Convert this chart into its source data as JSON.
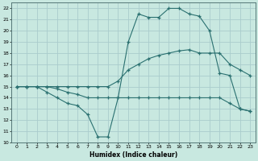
{
  "title": "",
  "xlabel": "Humidex (Indice chaleur)",
  "xlim": [
    -0.5,
    23.5
  ],
  "ylim": [
    10,
    22.5
  ],
  "xticks": [
    0,
    1,
    2,
    3,
    4,
    5,
    6,
    7,
    8,
    9,
    10,
    11,
    12,
    13,
    14,
    15,
    16,
    17,
    18,
    19,
    20,
    21,
    22,
    23
  ],
  "yticks": [
    10,
    11,
    12,
    13,
    14,
    15,
    16,
    17,
    18,
    19,
    20,
    21,
    22
  ],
  "bg_color": "#c8e8e0",
  "grid_color": "#aacccc",
  "line_color": "#2a7070",
  "line1_x": [
    0,
    1,
    2,
    3,
    4,
    5,
    6,
    7,
    8,
    9,
    10,
    11,
    12,
    13,
    14,
    15,
    16,
    17,
    18,
    19,
    20,
    21,
    22,
    23
  ],
  "line1_y": [
    15,
    15,
    15,
    14.5,
    14,
    13.5,
    13.3,
    12.5,
    10.5,
    10.5,
    14,
    19,
    21.5,
    21.2,
    21.2,
    22,
    22,
    21.5,
    21.3,
    20,
    16.2,
    16,
    13,
    12.8
  ],
  "line2_x": [
    0,
    1,
    2,
    3,
    4,
    5,
    6,
    7,
    8,
    9,
    10,
    11,
    12,
    13,
    14,
    15,
    16,
    17,
    18,
    19,
    20,
    21,
    22,
    23
  ],
  "line2_y": [
    15,
    15,
    15,
    15,
    15,
    15,
    15,
    15,
    15,
    15,
    15.5,
    16.5,
    17,
    17.5,
    17.8,
    18,
    18.2,
    18.3,
    18,
    18,
    18,
    17,
    16.5,
    16
  ],
  "line3_x": [
    0,
    1,
    2,
    3,
    4,
    5,
    6,
    7,
    8,
    9,
    10,
    11,
    12,
    13,
    14,
    15,
    16,
    17,
    18,
    19,
    20,
    21,
    22,
    23
  ],
  "line3_y": [
    15,
    15,
    15,
    15,
    14.8,
    14.5,
    14.3,
    14,
    14,
    14,
    14,
    14,
    14,
    14,
    14,
    14,
    14,
    14,
    14,
    14,
    14,
    13.5,
    13,
    12.8
  ]
}
